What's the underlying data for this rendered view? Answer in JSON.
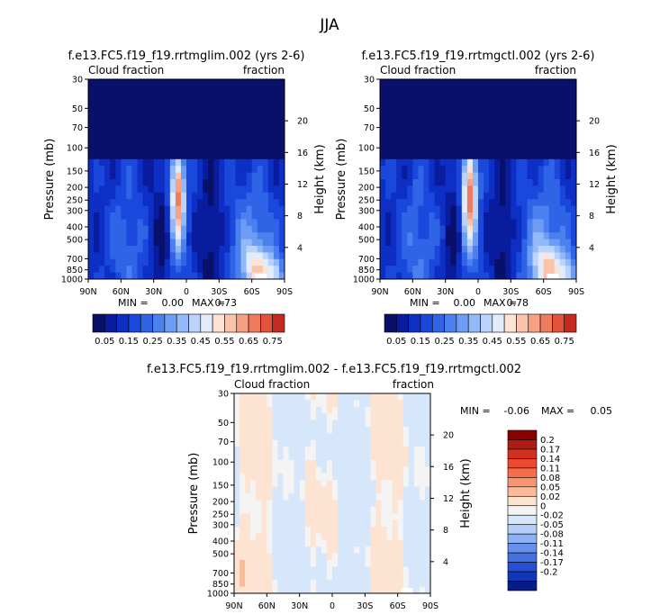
{
  "figure": {
    "title": "JJA",
    "panels": [
      {
        "title": "f.e13.FC5.f19_f19.rrtmglim.002 (yrs 2-6)",
        "left_label": "Cloud fraction",
        "right_label": "fraction",
        "yaxis_left": "Pressure (mb)",
        "yaxis_right": "Height (km)",
        "min_label": "MIN =",
        "min_value": "0.00",
        "max_label": "MAX =",
        "max_value": "0.73"
      },
      {
        "title": "f.e13.FC5.f19_f19.rrtmgctl.002 (yrs 2-6)",
        "left_label": "Cloud fraction",
        "right_label": "fraction",
        "yaxis_left": "Pressure (mb)",
        "yaxis_right": "Height (km)",
        "min_label": "MIN =",
        "min_value": "0.00",
        "max_label": "MAX =",
        "max_value": "0.78"
      },
      {
        "title": "f.e13.FC5.f19_f19.rrtmglim.002 - f.e13.FC5.f19_f19.rrtmgctl.002",
        "left_label": "Cloud fraction",
        "right_label": "fraction",
        "yaxis_left": "Pressure (mb)",
        "yaxis_right": "Height (km)",
        "min_label": "MIN =",
        "min_value": "-0.06",
        "max_label": "MAX =",
        "max_value": "0.05"
      }
    ]
  },
  "chart_data": [
    {
      "type": "heatmap",
      "title": "f.e13.FC5.f19_f19.rrtmglim.002 (yrs 2-6)",
      "xlabel": "",
      "ylabel": "Pressure (mb)",
      "y2label": "Height (km)",
      "x_ticks": [
        "90N",
        "60N",
        "30N",
        "0",
        "30S",
        "60S",
        "90S"
      ],
      "y_ticks": [
        "30",
        "50",
        "70",
        "100",
        "150",
        "200",
        "250",
        "300",
        "400",
        "500",
        "700",
        "850",
        "1000"
      ],
      "y2_ticks": [
        "20",
        "16",
        "12",
        "8",
        "4"
      ],
      "xlim": [
        90,
        -90
      ],
      "ylim": [
        1000,
        30
      ],
      "log_y": true,
      "colorbar_labels": [
        "0.05",
        "0.15",
        "0.25",
        "0.35",
        "0.45",
        "0.55",
        "0.65",
        "0.75"
      ],
      "min": 0.0,
      "max": 0.73
    },
    {
      "type": "heatmap",
      "title": "f.e13.FC5.f19_f19.rrtmgctl.002 (yrs 2-6)",
      "xlabel": "",
      "ylabel": "Pressure (mb)",
      "y2label": "Height (km)",
      "x_ticks": [
        "90N",
        "60N",
        "30N",
        "0",
        "30S",
        "60S",
        "90S"
      ],
      "y_ticks": [
        "30",
        "50",
        "70",
        "100",
        "150",
        "200",
        "250",
        "300",
        "400",
        "500",
        "700",
        "850",
        "1000"
      ],
      "y2_ticks": [
        "20",
        "16",
        "12",
        "8",
        "4"
      ],
      "xlim": [
        90,
        -90
      ],
      "ylim": [
        1000,
        30
      ],
      "log_y": true,
      "colorbar_labels": [
        "0.05",
        "0.15",
        "0.25",
        "0.35",
        "0.45",
        "0.55",
        "0.65",
        "0.75"
      ],
      "min": 0.0,
      "max": 0.78
    },
    {
      "type": "heatmap",
      "title": "f.e13.FC5.f19_f19.rrtmglim.002 - f.e13.FC5.f19_f19.rrtmgctl.002",
      "xlabel": "",
      "ylabel": "Pressure (mb)",
      "y2label": "Height (km)",
      "x_ticks": [
        "90N",
        "60N",
        "30N",
        "0",
        "30S",
        "60S",
        "90S"
      ],
      "y_ticks": [
        "30",
        "50",
        "70",
        "100",
        "150",
        "200",
        "250",
        "300",
        "400",
        "500",
        "700",
        "850",
        "1000"
      ],
      "y2_ticks": [
        "20",
        "16",
        "12",
        "8",
        "4"
      ],
      "xlim": [
        90,
        -90
      ],
      "ylim": [
        1000,
        30
      ],
      "log_y": true,
      "colorbar_labels": [
        "0.2",
        "0.17",
        "0.14",
        "0.11",
        "0.08",
        "0.05",
        "0.02",
        "0",
        "-0.02",
        "-0.05",
        "-0.08",
        "-0.11",
        "-0.14",
        "-0.17",
        "-0.2"
      ],
      "min": -0.06,
      "max": 0.05
    }
  ],
  "colors": {
    "seq": [
      "#08106a",
      "#0a1c9e",
      "#0d2fc4",
      "#1a47dc",
      "#2f64e6",
      "#4b80ee",
      "#6d9cf4",
      "#93b9f8",
      "#bcd3fb",
      "#e1ecfd",
      "#fde3d6",
      "#fbc4aa",
      "#f7a083",
      "#f07a5d",
      "#e2533c",
      "#c42a1f",
      "#800000"
    ],
    "div": [
      "#8b0000",
      "#b01a10",
      "#d2301e",
      "#ec4a30",
      "#f56d4b",
      "#f8956f",
      "#fbbb9a",
      "#fde4d2",
      "#f4f4f4",
      "#d6e6fb",
      "#b4cef8",
      "#8fb1f3",
      "#6790ec",
      "#4470e2",
      "#2550d4",
      "#1236b8",
      "#081c86"
    ]
  }
}
